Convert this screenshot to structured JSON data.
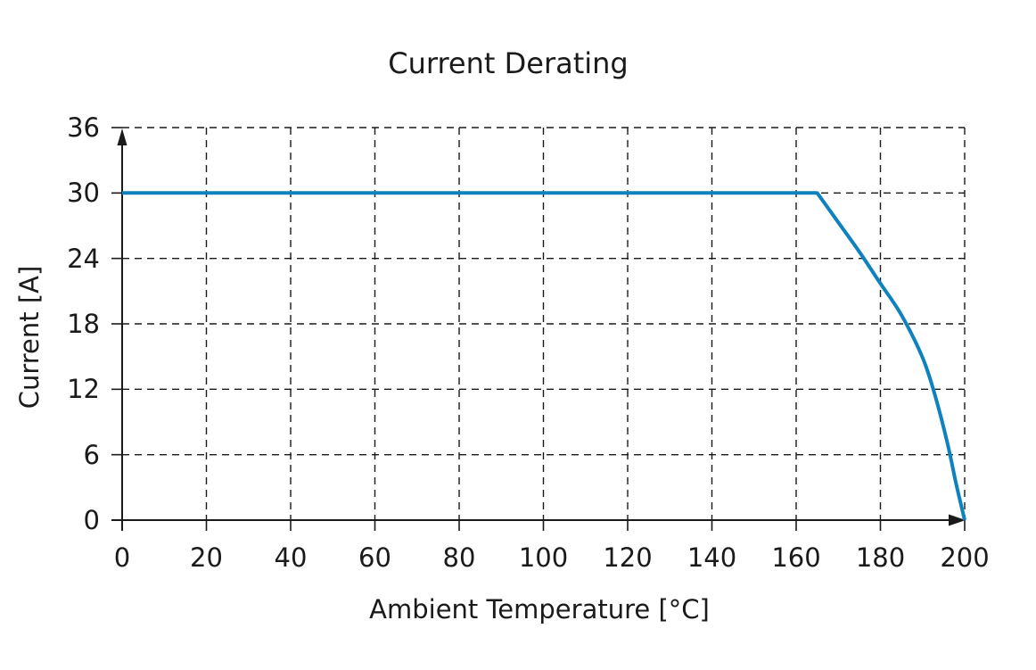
{
  "chart_data": {
    "type": "line",
    "title": "Current Derating",
    "xlabel": "Ambient Temperature [°C]",
    "ylabel": "Current [A]",
    "xlim": [
      0,
      200
    ],
    "ylim": [
      0,
      36
    ],
    "x_ticks": [
      0,
      20,
      40,
      60,
      80,
      100,
      120,
      140,
      160,
      180,
      200
    ],
    "y_ticks": [
      0,
      6,
      12,
      18,
      24,
      30,
      36
    ],
    "grid": "dashed",
    "legend": "none",
    "background": "#ffffff",
    "line_color": "#0e82be",
    "grid_color": "#1a1a1a",
    "axis_color": "#1a1a1a",
    "text_color": "#1a1a1a",
    "series": [
      {
        "name": "Current Derating",
        "points": [
          [
            0,
            30
          ],
          [
            165,
            30
          ],
          [
            170,
            27.3
          ],
          [
            175,
            24.6
          ],
          [
            180,
            21.7
          ],
          [
            185,
            18.8
          ],
          [
            190,
            14.9
          ],
          [
            193,
            11.4
          ],
          [
            196,
            6.9
          ],
          [
            198,
            3.3
          ],
          [
            200,
            0
          ]
        ]
      }
    ]
  }
}
